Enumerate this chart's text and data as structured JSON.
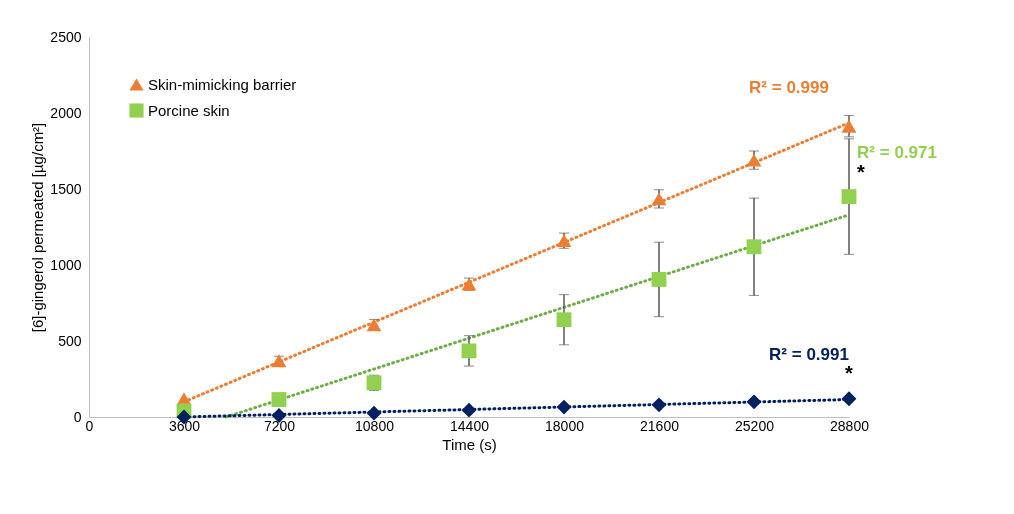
{
  "chart_data": {
    "type": "scatter",
    "xlabel": "Time (s)",
    "ylabel": "[6]-gingerol permeated [µg/cm²]",
    "x": [
      3600,
      7200,
      10800,
      14400,
      18000,
      21600,
      25200,
      28800
    ],
    "xlim": [
      0,
      28800
    ],
    "xticks": [
      0,
      3600,
      7200,
      10800,
      14400,
      18000,
      21600,
      25200,
      28800
    ],
    "ylim": [
      0,
      2500
    ],
    "yticks": [
      0,
      500,
      1000,
      1500,
      2000,
      2500
    ],
    "grid": false,
    "legend": "top left",
    "series": [
      {
        "name": "Skin-mimicking barrier",
        "color": "#ed7d31",
        "marker": "triangle",
        "values": [
          120,
          370,
          606,
          874,
          1160,
          1435,
          1690,
          1913
        ],
        "errors": [
          null,
          30,
          35,
          40,
          50,
          60,
          60,
          70
        ]
      },
      {
        "name": "Porcine skin",
        "color": "#92d050",
        "marker": "square",
        "values": [
          40,
          115,
          225,
          435,
          640,
          905,
          1120,
          1450
        ],
        "errors": [
          null,
          null,
          50,
          100,
          165,
          245,
          320,
          380
        ]
      },
      {
        "color": "#002060",
        "marker": "diamond",
        "values": [
          0,
          10,
          25,
          45,
          65,
          80,
          100,
          120
        ]
      },
      {
        "type": "line",
        "color": "#ed7d31",
        "line_style": "dotted",
        "marker": "none",
        "x": [
          3600,
          28800
        ],
        "values": [
          100,
          1935
        ]
      },
      {
        "type": "line",
        "color": "#70ad47",
        "line_style": "dotted",
        "marker": "none",
        "x": [
          5200,
          28800
        ],
        "values": [
          0,
          1330
        ]
      },
      {
        "type": "line",
        "color": "#002060",
        "line_style": "dotted",
        "marker": "none",
        "x": [
          3600,
          28800
        ],
        "values": [
          0,
          115
        ]
      }
    ],
    "annotations": [
      "R² = 0.999",
      "R² = 0.971",
      "R² = 0.991",
      "*",
      "*"
    ]
  }
}
